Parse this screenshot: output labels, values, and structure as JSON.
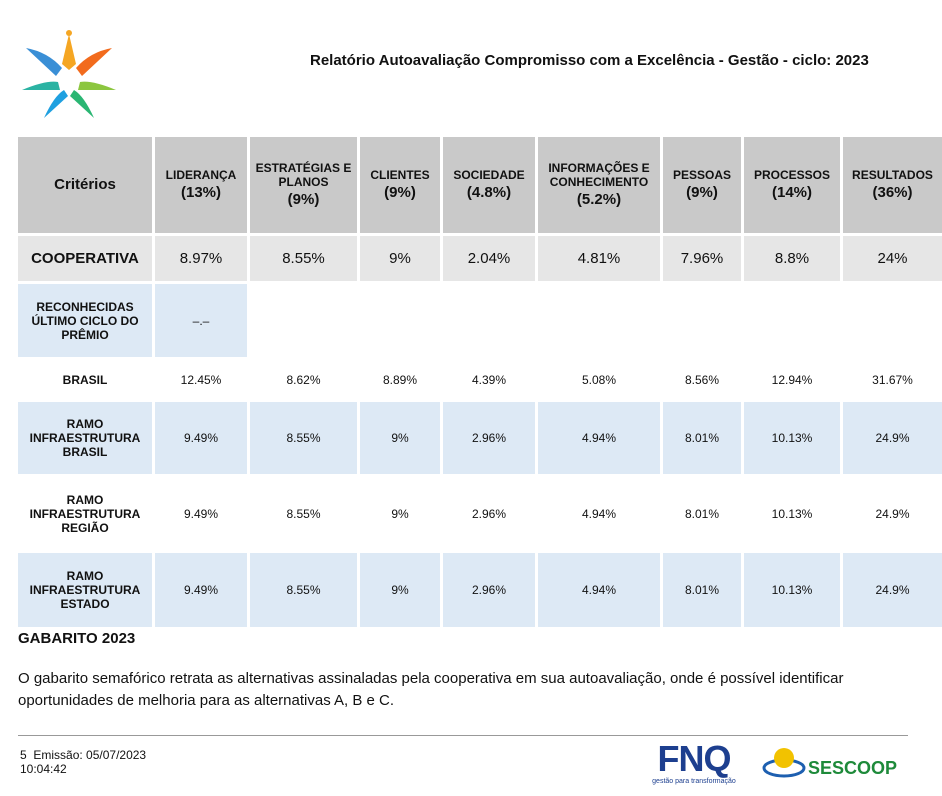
{
  "header": {
    "title": "Relatório Autoavaliação Compromisso com a Excelência - Gestão - ciclo: 2023"
  },
  "table": {
    "headers": [
      {
        "name": "Critérios"
      },
      {
        "name": "LIDERANÇA",
        "weight": "(13%)"
      },
      {
        "name": "ESTRATÉGIAS E PLANOS",
        "weight": "(9%)"
      },
      {
        "name": "CLIENTES",
        "weight": "(9%)"
      },
      {
        "name": "SOCIEDADE",
        "weight": "(4.8%)"
      },
      {
        "name": "INFORMAÇÕES E CONHECIMENTO",
        "weight": "(5.2%)"
      },
      {
        "name": "PESSOAS",
        "weight": "(9%)"
      },
      {
        "name": "PROCESSOS",
        "weight": "(14%)"
      },
      {
        "name": "RESULTADOS",
        "weight": "(36%)"
      }
    ],
    "rows": [
      [
        "COOPERATIVA",
        "8.97%",
        "8.55%",
        "9%",
        "2.04%",
        "4.81%",
        "7.96%",
        "8.8%",
        "24%"
      ],
      [
        "RECONHECIDAS ÚLTIMO CICLO DO PRÊMIO",
        "–.–"
      ],
      [
        "BRASIL",
        "12.45%",
        "8.62%",
        "8.89%",
        "4.39%",
        "5.08%",
        "8.56%",
        "12.94%",
        "31.67%"
      ],
      [
        "RAMO INFRAESTRUTURA BRASIL",
        "9.49%",
        "8.55%",
        "9%",
        "2.96%",
        "4.94%",
        "8.01%",
        "10.13%",
        "24.9%"
      ],
      [
        "RAMO INFRAESTRUTURA REGIÃO",
        "9.49%",
        "8.55%",
        "9%",
        "2.96%",
        "4.94%",
        "8.01%",
        "10.13%",
        "24.9%"
      ],
      [
        "RAMO INFRAESTRUTURA ESTADO",
        "9.49%",
        "8.55%",
        "9%",
        "2.96%",
        "4.94%",
        "8.01%",
        "10.13%",
        "24.9%"
      ]
    ]
  },
  "gabarito": {
    "title": "GABARITO 2023",
    "text": "O gabarito semafórico retrata as alternativas assinaladas pela cooperativa em sua autoavaliação, onde é possível identificar oportunidades de melhoria para as alternativas A, B e C."
  },
  "footer": {
    "page": "5",
    "emission": "Emissão: 05/07/2023",
    "time": "10:04:42",
    "fnq": "FNQ",
    "fnq_tagline": "gestão para transformação",
    "sescoop": "SESCOOP"
  }
}
